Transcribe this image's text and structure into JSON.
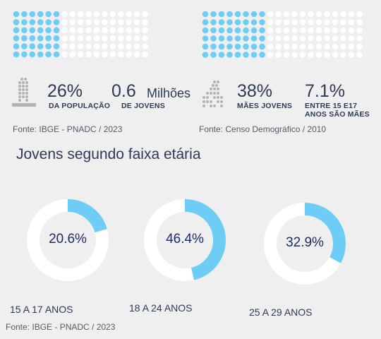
{
  "colors": {
    "accent": "#6dcdf4",
    "track": "#ffffff",
    "text": "#2e3a55",
    "icon": "#b3b3b3",
    "value": "#1f2a6b"
  },
  "infographic": {
    "grid_left": {
      "cols": 17,
      "rows": 6,
      "filled_cols": 6,
      "filled_share": 0.26
    },
    "grid_right": {
      "cols": 20,
      "rows": 6,
      "filled_cols": 8,
      "filled_share": 0.38
    },
    "stats": [
      {
        "value": "26%",
        "label": "DA POPULAÇÃO"
      },
      {
        "value": "0.6",
        "unit": "Milhões",
        "label": "DE JOVENS"
      },
      {
        "value": "38%",
        "label": "MÃES JOVENS"
      },
      {
        "value": "7.1%",
        "label_lines": [
          "ENTRE 15 E17",
          "ANOS SÃO MÃES"
        ]
      }
    ],
    "sources": [
      "Fonte: IBGE - PNADC / 2023",
      "Fonte: Censo Demográfico / 2010"
    ],
    "icons": [
      "person-icon",
      "mother-child-icon"
    ]
  },
  "section_title": "Jovens segundo faixa etária",
  "chart_data": {
    "type": "pie",
    "variant": "donut",
    "title": "Jovens segundo faixa etária",
    "categories": [
      "15 A 17 ANOS",
      "18 A 24 ANOS",
      "25 A 29 ANOS"
    ],
    "values": [
      20.6,
      46.4,
      32.9
    ],
    "value_labels": [
      "20.6%",
      "46.4%",
      "32.9%"
    ],
    "unit": "%"
  },
  "footer_source": "Fonte: IBGE - PNADC / 2023"
}
